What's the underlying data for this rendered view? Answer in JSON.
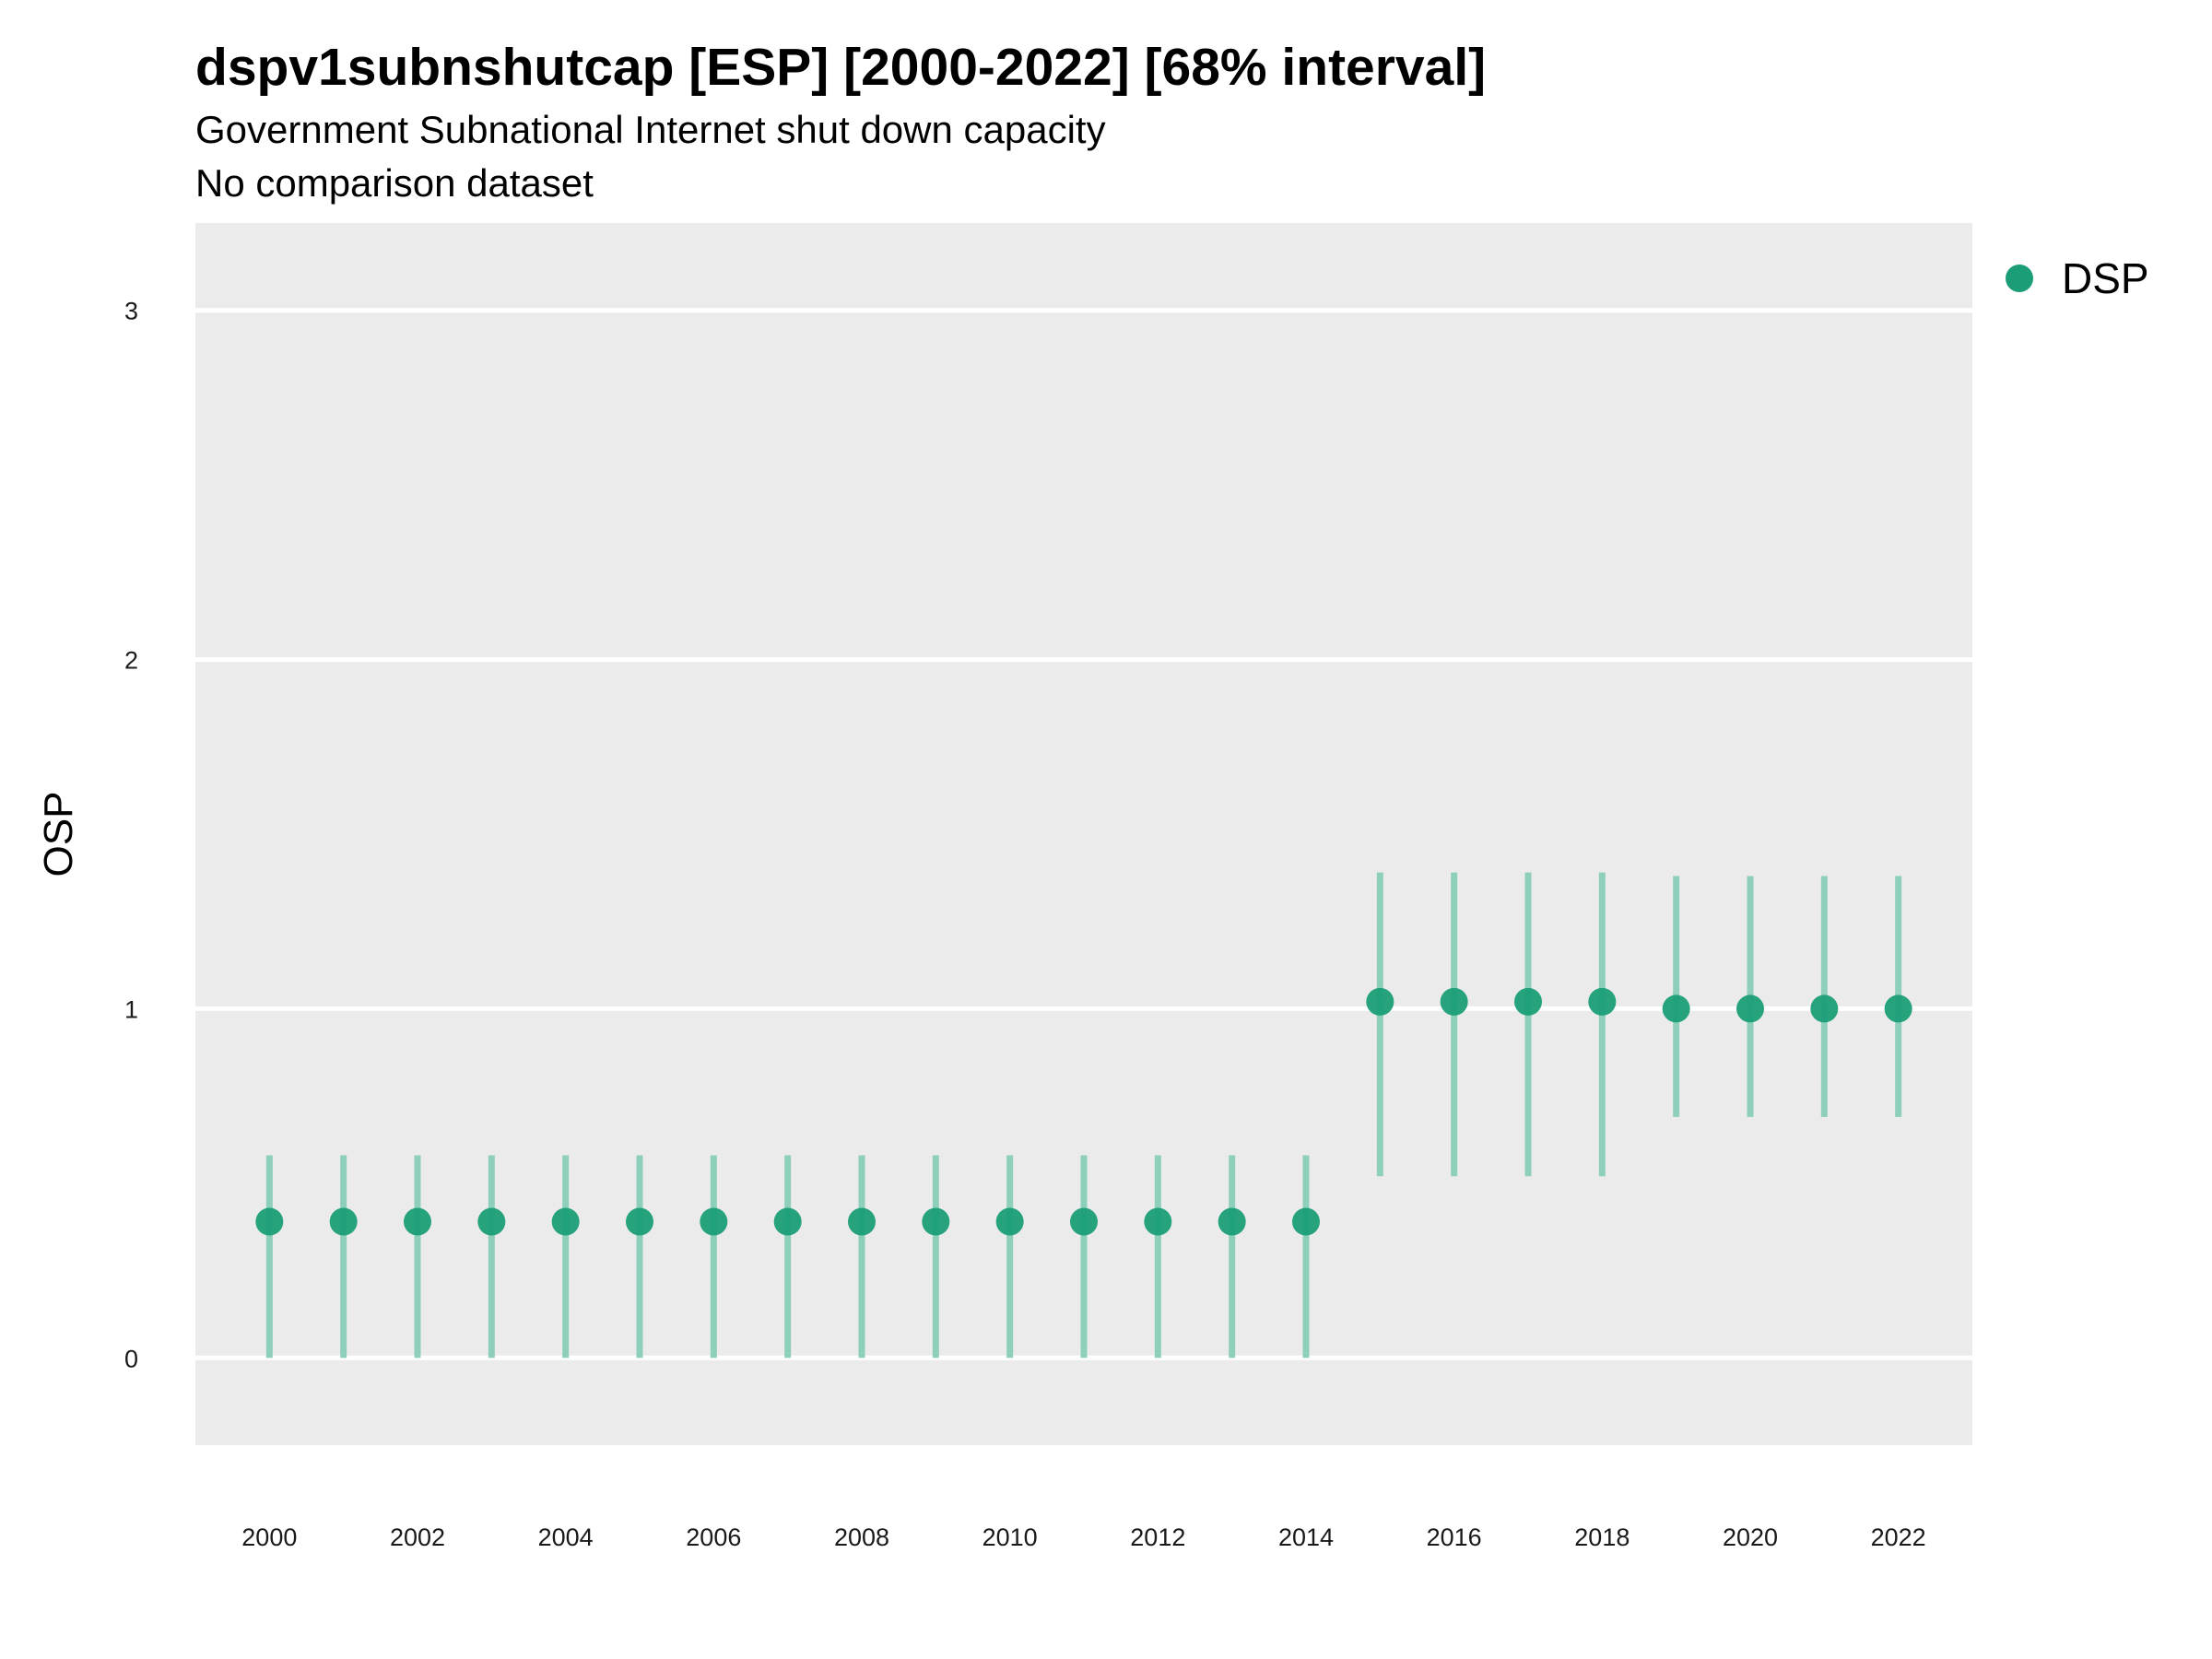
{
  "chart_data": {
    "type": "scatter",
    "title": "dspv1subnshutcap [ESP] [2000-2022] [68% interval]",
    "subtitle": "Government Subnational Internet shut down capacity",
    "caption": "No comparison dataset",
    "xlabel": "",
    "ylabel": "OSP",
    "xlim": [
      1999,
      2023
    ],
    "ylim": [
      -0.25,
      3.25
    ],
    "x_ticks": [
      2000,
      2002,
      2004,
      2006,
      2008,
      2010,
      2012,
      2014,
      2016,
      2018,
      2020,
      2022
    ],
    "y_ticks": [
      0,
      1,
      2,
      3
    ],
    "grid": true,
    "legend_position": "top-right",
    "colors": {
      "panel": "#ebebeb",
      "grid": "#ffffff",
      "point": "#1b9e77",
      "interval": "#8ecfbb"
    },
    "series": [
      {
        "name": "DSP",
        "x": [
          2000,
          2001,
          2002,
          2003,
          2004,
          2005,
          2006,
          2007,
          2008,
          2009,
          2010,
          2011,
          2012,
          2013,
          2014,
          2015,
          2016,
          2017,
          2018,
          2019,
          2020,
          2021,
          2022
        ],
        "y": [
          0.39,
          0.39,
          0.39,
          0.39,
          0.39,
          0.39,
          0.39,
          0.39,
          0.39,
          0.39,
          0.39,
          0.39,
          0.39,
          0.39,
          0.39,
          1.02,
          1.02,
          1.02,
          1.02,
          1.0,
          1.0,
          1.0,
          1.0
        ],
        "lower": [
          0.0,
          0.0,
          0.0,
          0.0,
          0.0,
          0.0,
          0.0,
          0.0,
          0.0,
          0.0,
          0.0,
          0.0,
          0.0,
          0.0,
          0.0,
          0.52,
          0.52,
          0.52,
          0.52,
          0.69,
          0.69,
          0.69,
          0.69
        ],
        "upper": [
          0.58,
          0.58,
          0.58,
          0.58,
          0.58,
          0.58,
          0.58,
          0.58,
          0.58,
          0.58,
          0.58,
          0.58,
          0.58,
          0.58,
          0.58,
          1.39,
          1.39,
          1.39,
          1.39,
          1.38,
          1.38,
          1.38,
          1.38
        ]
      }
    ]
  }
}
